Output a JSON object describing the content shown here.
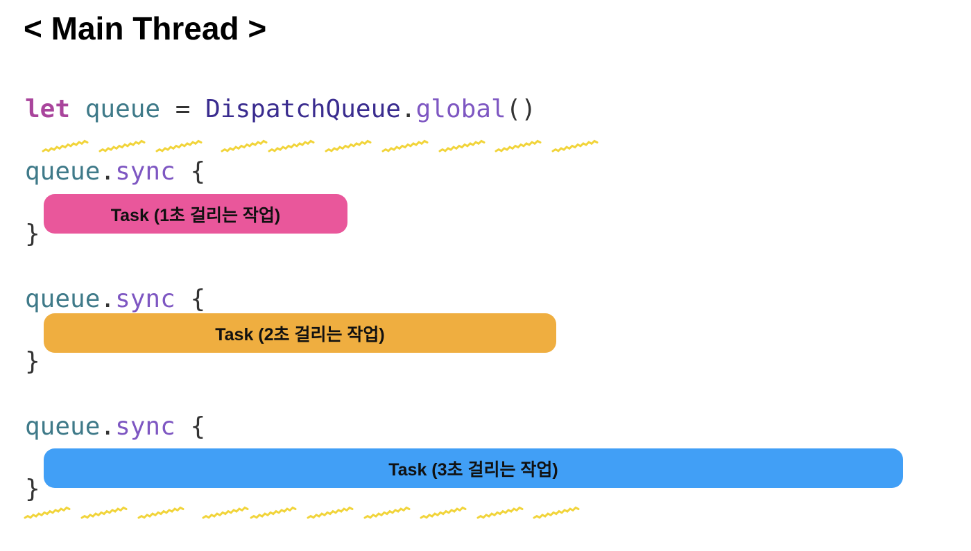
{
  "title": "< Main Thread >",
  "code": {
    "declaration": {
      "keyword": "let",
      "variable": "queue",
      "operator": "=",
      "type": "DispatchQueue",
      "dot": ".",
      "method": "global",
      "call": "()"
    },
    "blocks": [
      {
        "receiver": "queue",
        "dot": ".",
        "method": "sync",
        "open": "{",
        "close": "}",
        "task_label": "Task (1초 걸리는 작업)",
        "task_color": "#e9579b"
      },
      {
        "receiver": "queue",
        "dot": ".",
        "method": "sync",
        "open": "{",
        "close": "}",
        "task_label": "Task (2초 걸리는 작업)",
        "task_color": "#efae40"
      },
      {
        "receiver": "queue",
        "dot": ".",
        "method": "sync",
        "open": "{",
        "close": "}",
        "task_label": "Task (3초 걸리는 작업)",
        "task_color": "#419ff6"
      }
    ]
  },
  "colors": {
    "keyword": "#a9459c",
    "variable": "#3f7a89",
    "type": "#3a2c8f",
    "method": "#7e57c2",
    "squiggle": "#f1d43a"
  }
}
